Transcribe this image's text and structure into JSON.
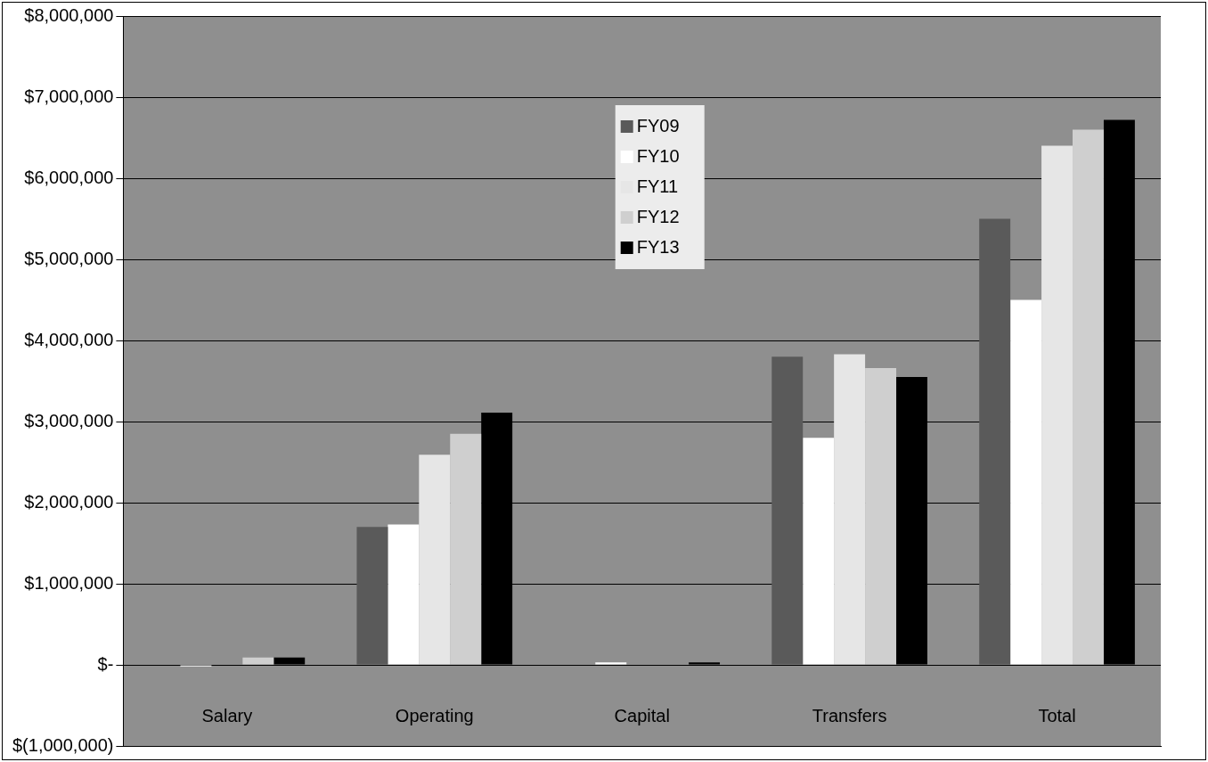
{
  "chart_data": {
    "type": "bar",
    "categories": [
      "Salary",
      "Operating",
      "Capital",
      "Transfers",
      "Total"
    ],
    "series": [
      {
        "name": "FY09",
        "color": "#5a5a5a",
        "values": [
          null,
          1700000,
          null,
          3800000,
          5500000
        ]
      },
      {
        "name": "FY10",
        "color": "#ffffff",
        "values": [
          -20000,
          1730000,
          30000,
          2800000,
          4500000
        ]
      },
      {
        "name": "FY11",
        "color": "#e6e6e6",
        "values": [
          null,
          2590000,
          null,
          3830000,
          6400000
        ]
      },
      {
        "name": "FY12",
        "color": "#cfcfcf",
        "values": [
          90000,
          2850000,
          null,
          3660000,
          6600000
        ]
      },
      {
        "name": "FY13",
        "color": "#000000",
        "values": [
          90000,
          3110000,
          30000,
          3550000,
          6720000
        ]
      }
    ],
    "ylim": [
      -1000000,
      8000000
    ],
    "yticks": [
      {
        "value": -1000000,
        "label": "$(1,000,000)"
      },
      {
        "value": 0,
        "label": "$-"
      },
      {
        "value": 1000000,
        "label": "$1,000,000"
      },
      {
        "value": 2000000,
        "label": "$2,000,000"
      },
      {
        "value": 3000000,
        "label": "$3,000,000"
      },
      {
        "value": 4000000,
        "label": "$4,000,000"
      },
      {
        "value": 5000000,
        "label": "$5,000,000"
      },
      {
        "value": 6000000,
        "label": "$6,000,000"
      },
      {
        "value": 7000000,
        "label": "$7,000,000"
      },
      {
        "value": 8000000,
        "label": "$8,000,000"
      }
    ],
    "grid": "y",
    "legend": "top"
  }
}
